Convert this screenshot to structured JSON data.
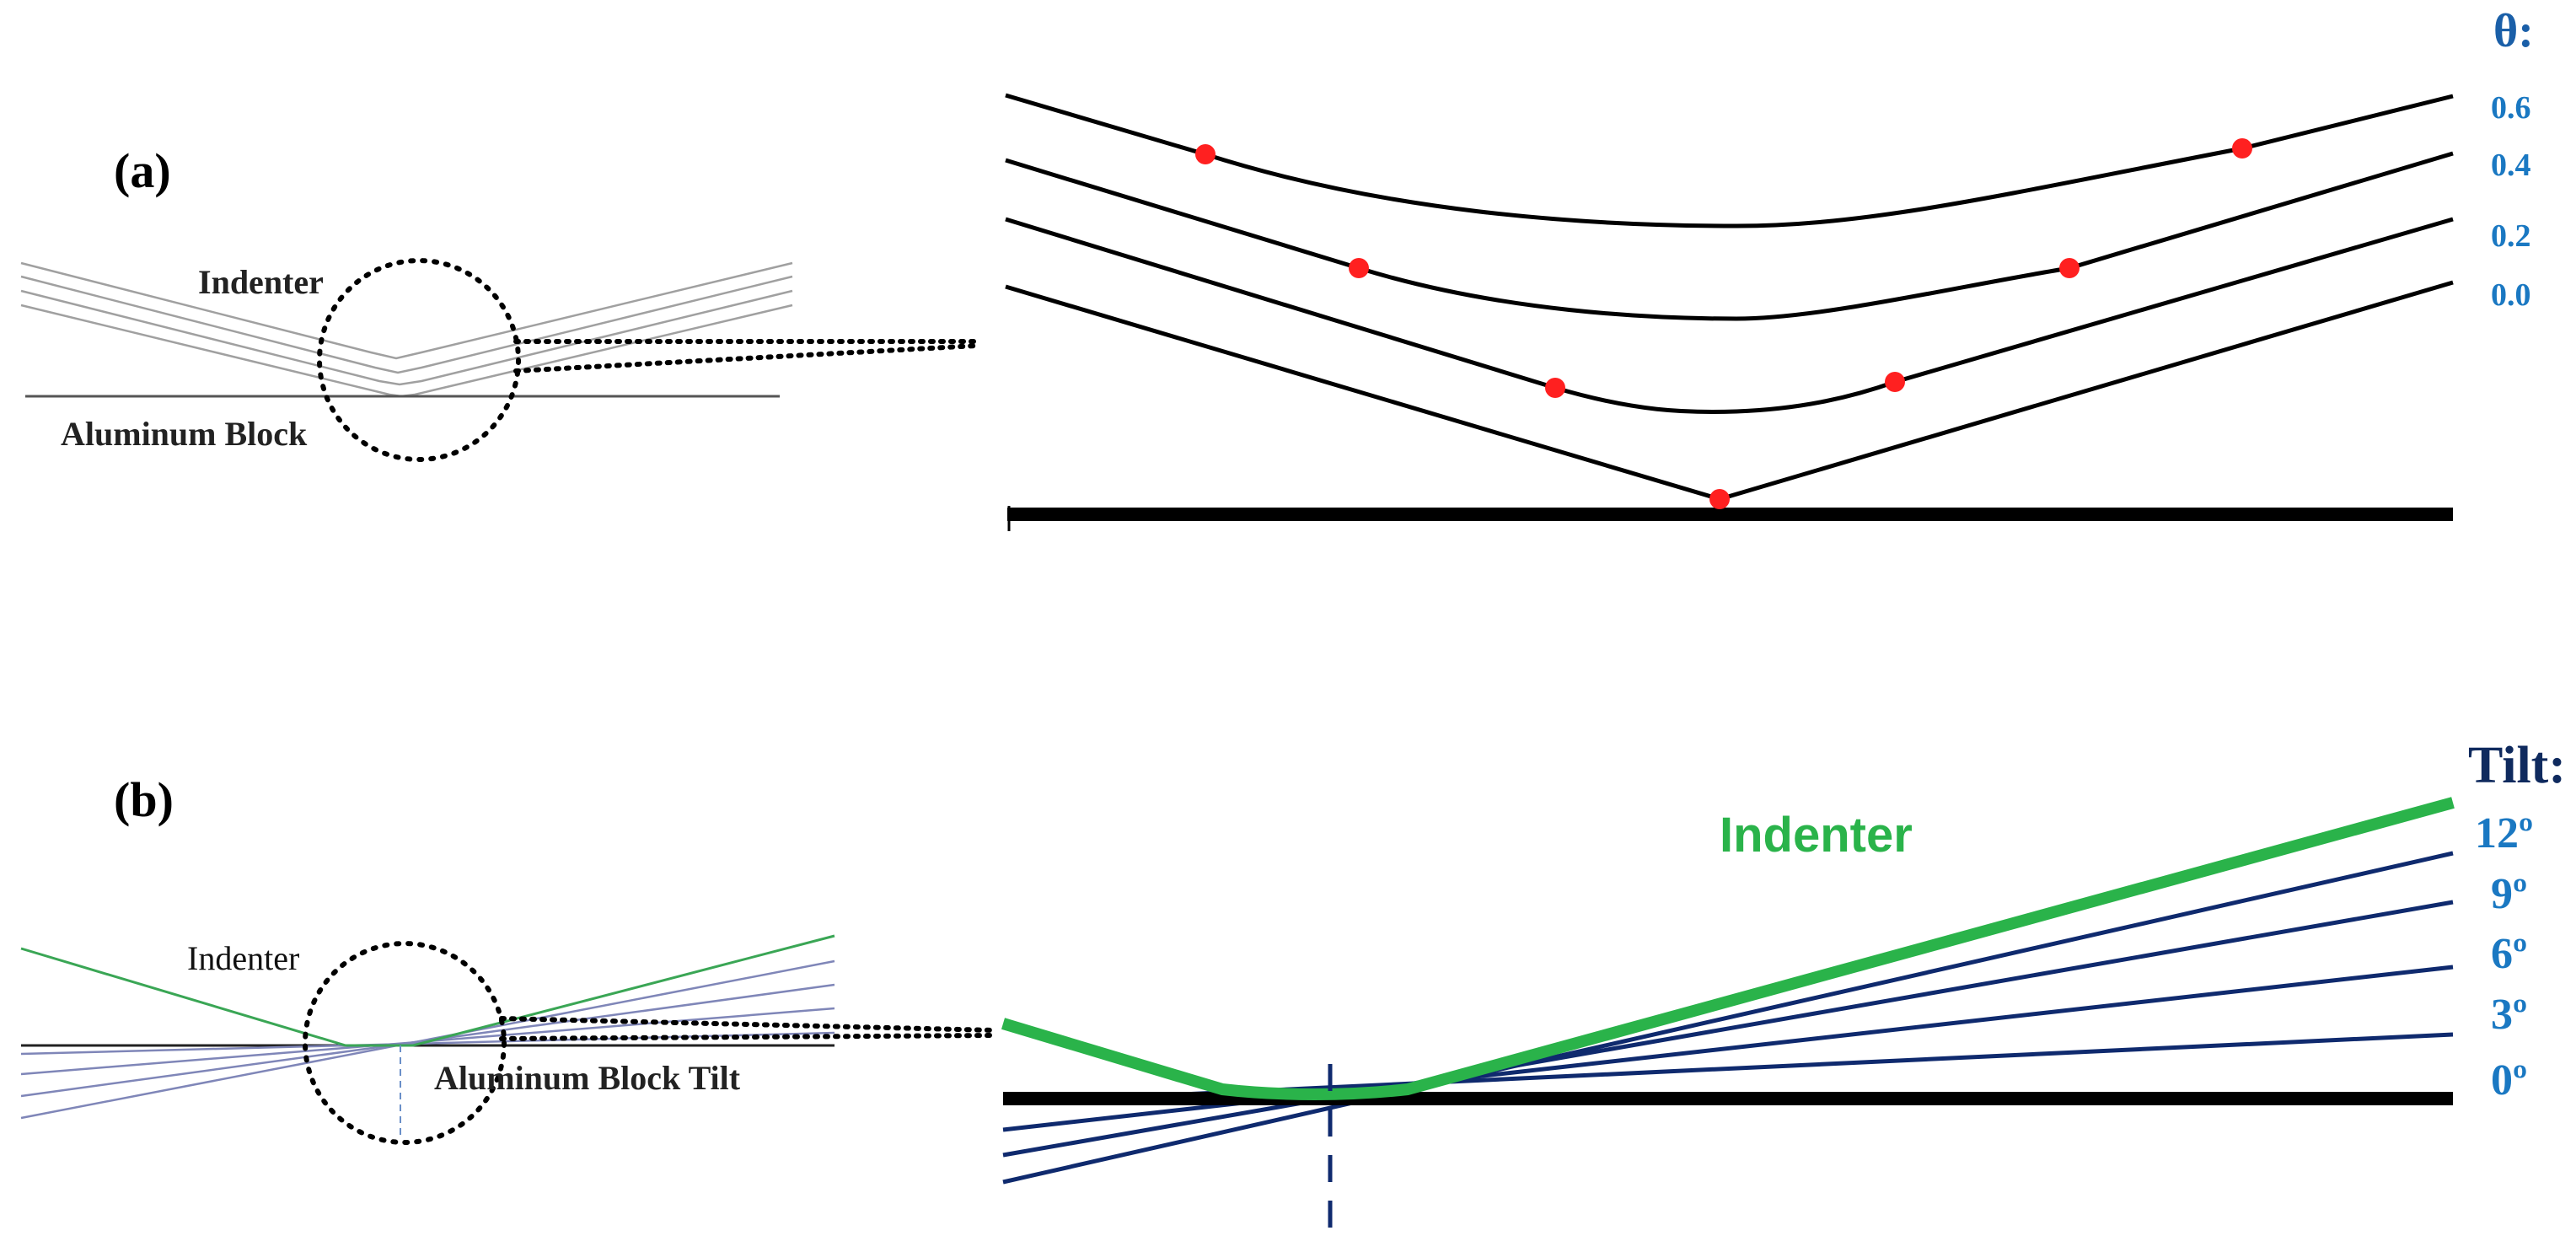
{
  "panel_a": {
    "label": "(a)",
    "indenter_label": "Indenter",
    "block_label": "Aluminum Block",
    "legend_title": "θ:",
    "legend_values": [
      "0.6",
      "0.4",
      "0.2",
      "0.0"
    ]
  },
  "panel_b": {
    "label": "(b)",
    "indenter_label": "Indenter",
    "block_label": "Aluminum Block Tilt",
    "zoom_indenter_label": "Indenter",
    "legend_title": "Tilt:",
    "legend_values": [
      "12º",
      "9º",
      "6º",
      "3º",
      "0º"
    ]
  },
  "colors": {
    "curve": "#000000",
    "contact_point": "#ff2020",
    "legend_text": "#1a78c2",
    "legend_title_a": "#1a5fa8",
    "legend_title_b": "#0f2a5e",
    "indenter_green": "#2ab34a",
    "tilt_lines": "#0f2a6e",
    "thin_gray": "#999999",
    "thin_blue": "#7f86b8"
  }
}
